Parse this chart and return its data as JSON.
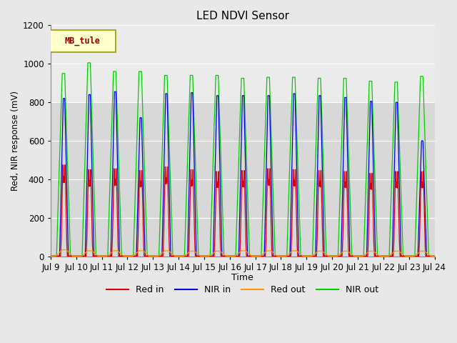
{
  "title": "LED NDVI Sensor",
  "xlabel": "Time",
  "ylabel": "Red, NIR response (mV)",
  "ylim": [
    0,
    1200
  ],
  "background_color": "#e8e8e8",
  "plot_bg_color": "#d8d8d8",
  "upper_bg_color": "#ebebeb",
  "lower_bg_color": "#d0d0d0",
  "grid_color": "#ffffff",
  "legend_label": "MB_tule",
  "x_tick_labels": [
    "Jul 9",
    "Jul 10",
    "Jul 11",
    "Jul 12",
    "Jul 13",
    "Jul 14",
    "Jul 15",
    "Jul 16",
    "Jul 17",
    "Jul 18",
    "Jul 19",
    "Jul 20",
    "Jul 21",
    "Jul 22",
    "Jul 23",
    "Jul 24"
  ],
  "colors": {
    "red_in": "#dd0000",
    "nir_in": "#0000dd",
    "red_out": "#ff9900",
    "nir_out": "#00cc00"
  },
  "series_labels": [
    "Red in",
    "NIR in",
    "Red out",
    "NIR out"
  ],
  "num_cycles": 15,
  "red_in_peaks": [
    490,
    465,
    470,
    460,
    480,
    465,
    455,
    460,
    470,
    465,
    460,
    455,
    445,
    455,
    455
  ],
  "nir_in_peaks": [
    820,
    840,
    855,
    720,
    845,
    850,
    835,
    835,
    835,
    845,
    835,
    825,
    805,
    800,
    600
  ],
  "red_out_peaks": [
    35,
    30,
    30,
    30,
    30,
    28,
    28,
    30,
    30,
    30,
    28,
    28,
    28,
    28,
    28
  ],
  "nir_out_peaks": [
    950,
    1005,
    960,
    960,
    940,
    940,
    940,
    925,
    930,
    930,
    925,
    925,
    910,
    905,
    935
  ]
}
